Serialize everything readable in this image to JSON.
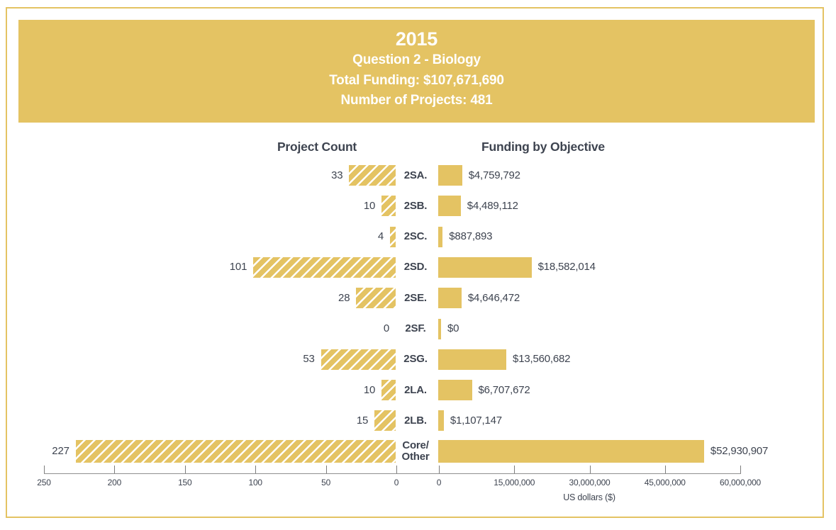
{
  "header": {
    "year": "2015",
    "subtitle": "Question 2 - Biology",
    "total_funding": "Total Funding: $107,671,690",
    "num_projects": "Number of Projects: 481"
  },
  "chart_data": {
    "type": "bar",
    "title": "2015 Question 2 - Biology",
    "left_title": "Project Count",
    "right_title": "Funding by Objective",
    "categories": [
      "2SA.",
      "2SB.",
      "2SC.",
      "2SD.",
      "2SE.",
      "2SF.",
      "2SG.",
      "2LA.",
      "2LB.",
      "Core/Other"
    ],
    "category_display": [
      "2SA.",
      "2SB.",
      "2SC.",
      "2SD.",
      "2SE.",
      "2SF.",
      "2SG.",
      "2LA.",
      "2LB.",
      "Core/\nOther"
    ],
    "series": [
      {
        "name": "Project Count",
        "values": [
          33,
          10,
          4,
          101,
          28,
          0,
          53,
          10,
          15,
          227
        ]
      },
      {
        "name": "Funding by Objective",
        "values": [
          4759792,
          4489112,
          887893,
          18582014,
          4646472,
          0,
          13560682,
          6707672,
          1107147,
          52930907
        ]
      }
    ],
    "count_labels": [
      "33",
      "10",
      "4",
      "101",
      "28",
      "0",
      "53",
      "10",
      "15",
      "227"
    ],
    "funding_labels": [
      "$4,759,792",
      "$4,489,112",
      "$887,893",
      "$18,582,014",
      "$4,646,472",
      "$0",
      "$13,560,682",
      "$6,707,672",
      "$1,107,147",
      "$52,930,907"
    ],
    "left_axis": {
      "tick_labels": [
        "250",
        "200",
        "150",
        "100",
        "50",
        "0"
      ],
      "tick_values": [
        250,
        200,
        150,
        100,
        50,
        0
      ],
      "range": [
        0,
        250
      ]
    },
    "right_axis": {
      "tick_labels": [
        "0",
        "15,000,000",
        "30,000,000",
        "45,000,000",
        "60,000,000"
      ],
      "tick_values": [
        0,
        15000000,
        30000000,
        45000000,
        60000000
      ],
      "range": [
        0,
        60000000
      ]
    },
    "xlabel": "US dollars ($)",
    "legend": "none",
    "grid": false,
    "colors": {
      "gold": "#e4c363",
      "text": "#3e4450",
      "axis": "#8f8f8f",
      "banner_text": "#ffffff"
    }
  }
}
